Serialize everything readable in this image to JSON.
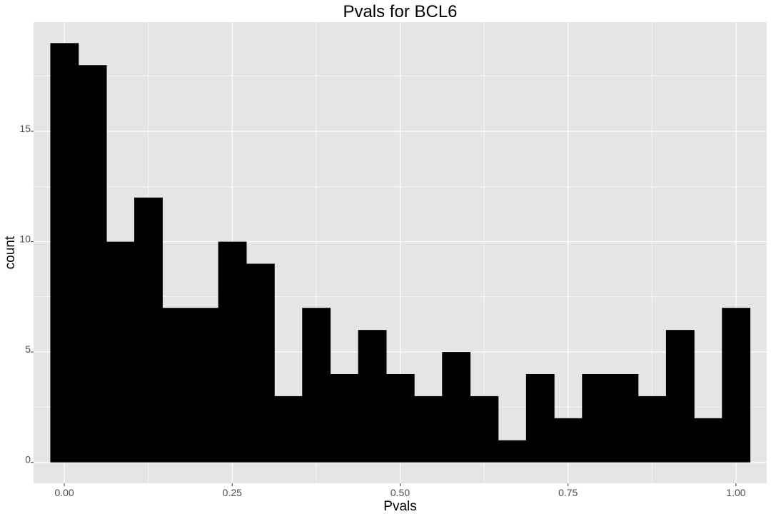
{
  "chart_data": {
    "type": "bar",
    "title": "Pvals for BCL6",
    "xlabel": "Pvals",
    "ylabel": "count",
    "bin_width": 0.0417,
    "bins": [
      {
        "x": 0.0,
        "count": 19
      },
      {
        "x": 0.0417,
        "count": 18
      },
      {
        "x": 0.0833,
        "count": 10
      },
      {
        "x": 0.125,
        "count": 12
      },
      {
        "x": 0.1667,
        "count": 7
      },
      {
        "x": 0.2083,
        "count": 7
      },
      {
        "x": 0.25,
        "count": 10
      },
      {
        "x": 0.2917,
        "count": 9
      },
      {
        "x": 0.3333,
        "count": 3
      },
      {
        "x": 0.375,
        "count": 7
      },
      {
        "x": 0.4167,
        "count": 4
      },
      {
        "x": 0.4583,
        "count": 6
      },
      {
        "x": 0.5,
        "count": 4
      },
      {
        "x": 0.5417,
        "count": 3
      },
      {
        "x": 0.5833,
        "count": 5
      },
      {
        "x": 0.625,
        "count": 3
      },
      {
        "x": 0.6667,
        "count": 1
      },
      {
        "x": 0.7083,
        "count": 4
      },
      {
        "x": 0.75,
        "count": 2
      },
      {
        "x": 0.7917,
        "count": 4
      },
      {
        "x": 0.8333,
        "count": 4
      },
      {
        "x": 0.875,
        "count": 3
      },
      {
        "x": 0.9167,
        "count": 6
      },
      {
        "x": 0.9583,
        "count": 2
      },
      {
        "x": 1.0,
        "count": 7
      }
    ],
    "x_ticks": [
      "0.00",
      "0.25",
      "0.50",
      "0.75",
      "1.00"
    ],
    "y_ticks": [
      "0",
      "5",
      "10",
      "15"
    ],
    "xlim": [
      -0.0458,
      1.0458
    ],
    "ylim": [
      -0.95,
      19.95
    ],
    "grid": true,
    "panel_color": "#e5e5e5",
    "grid_color": "#ffffff",
    "bar_color": "#000000"
  }
}
